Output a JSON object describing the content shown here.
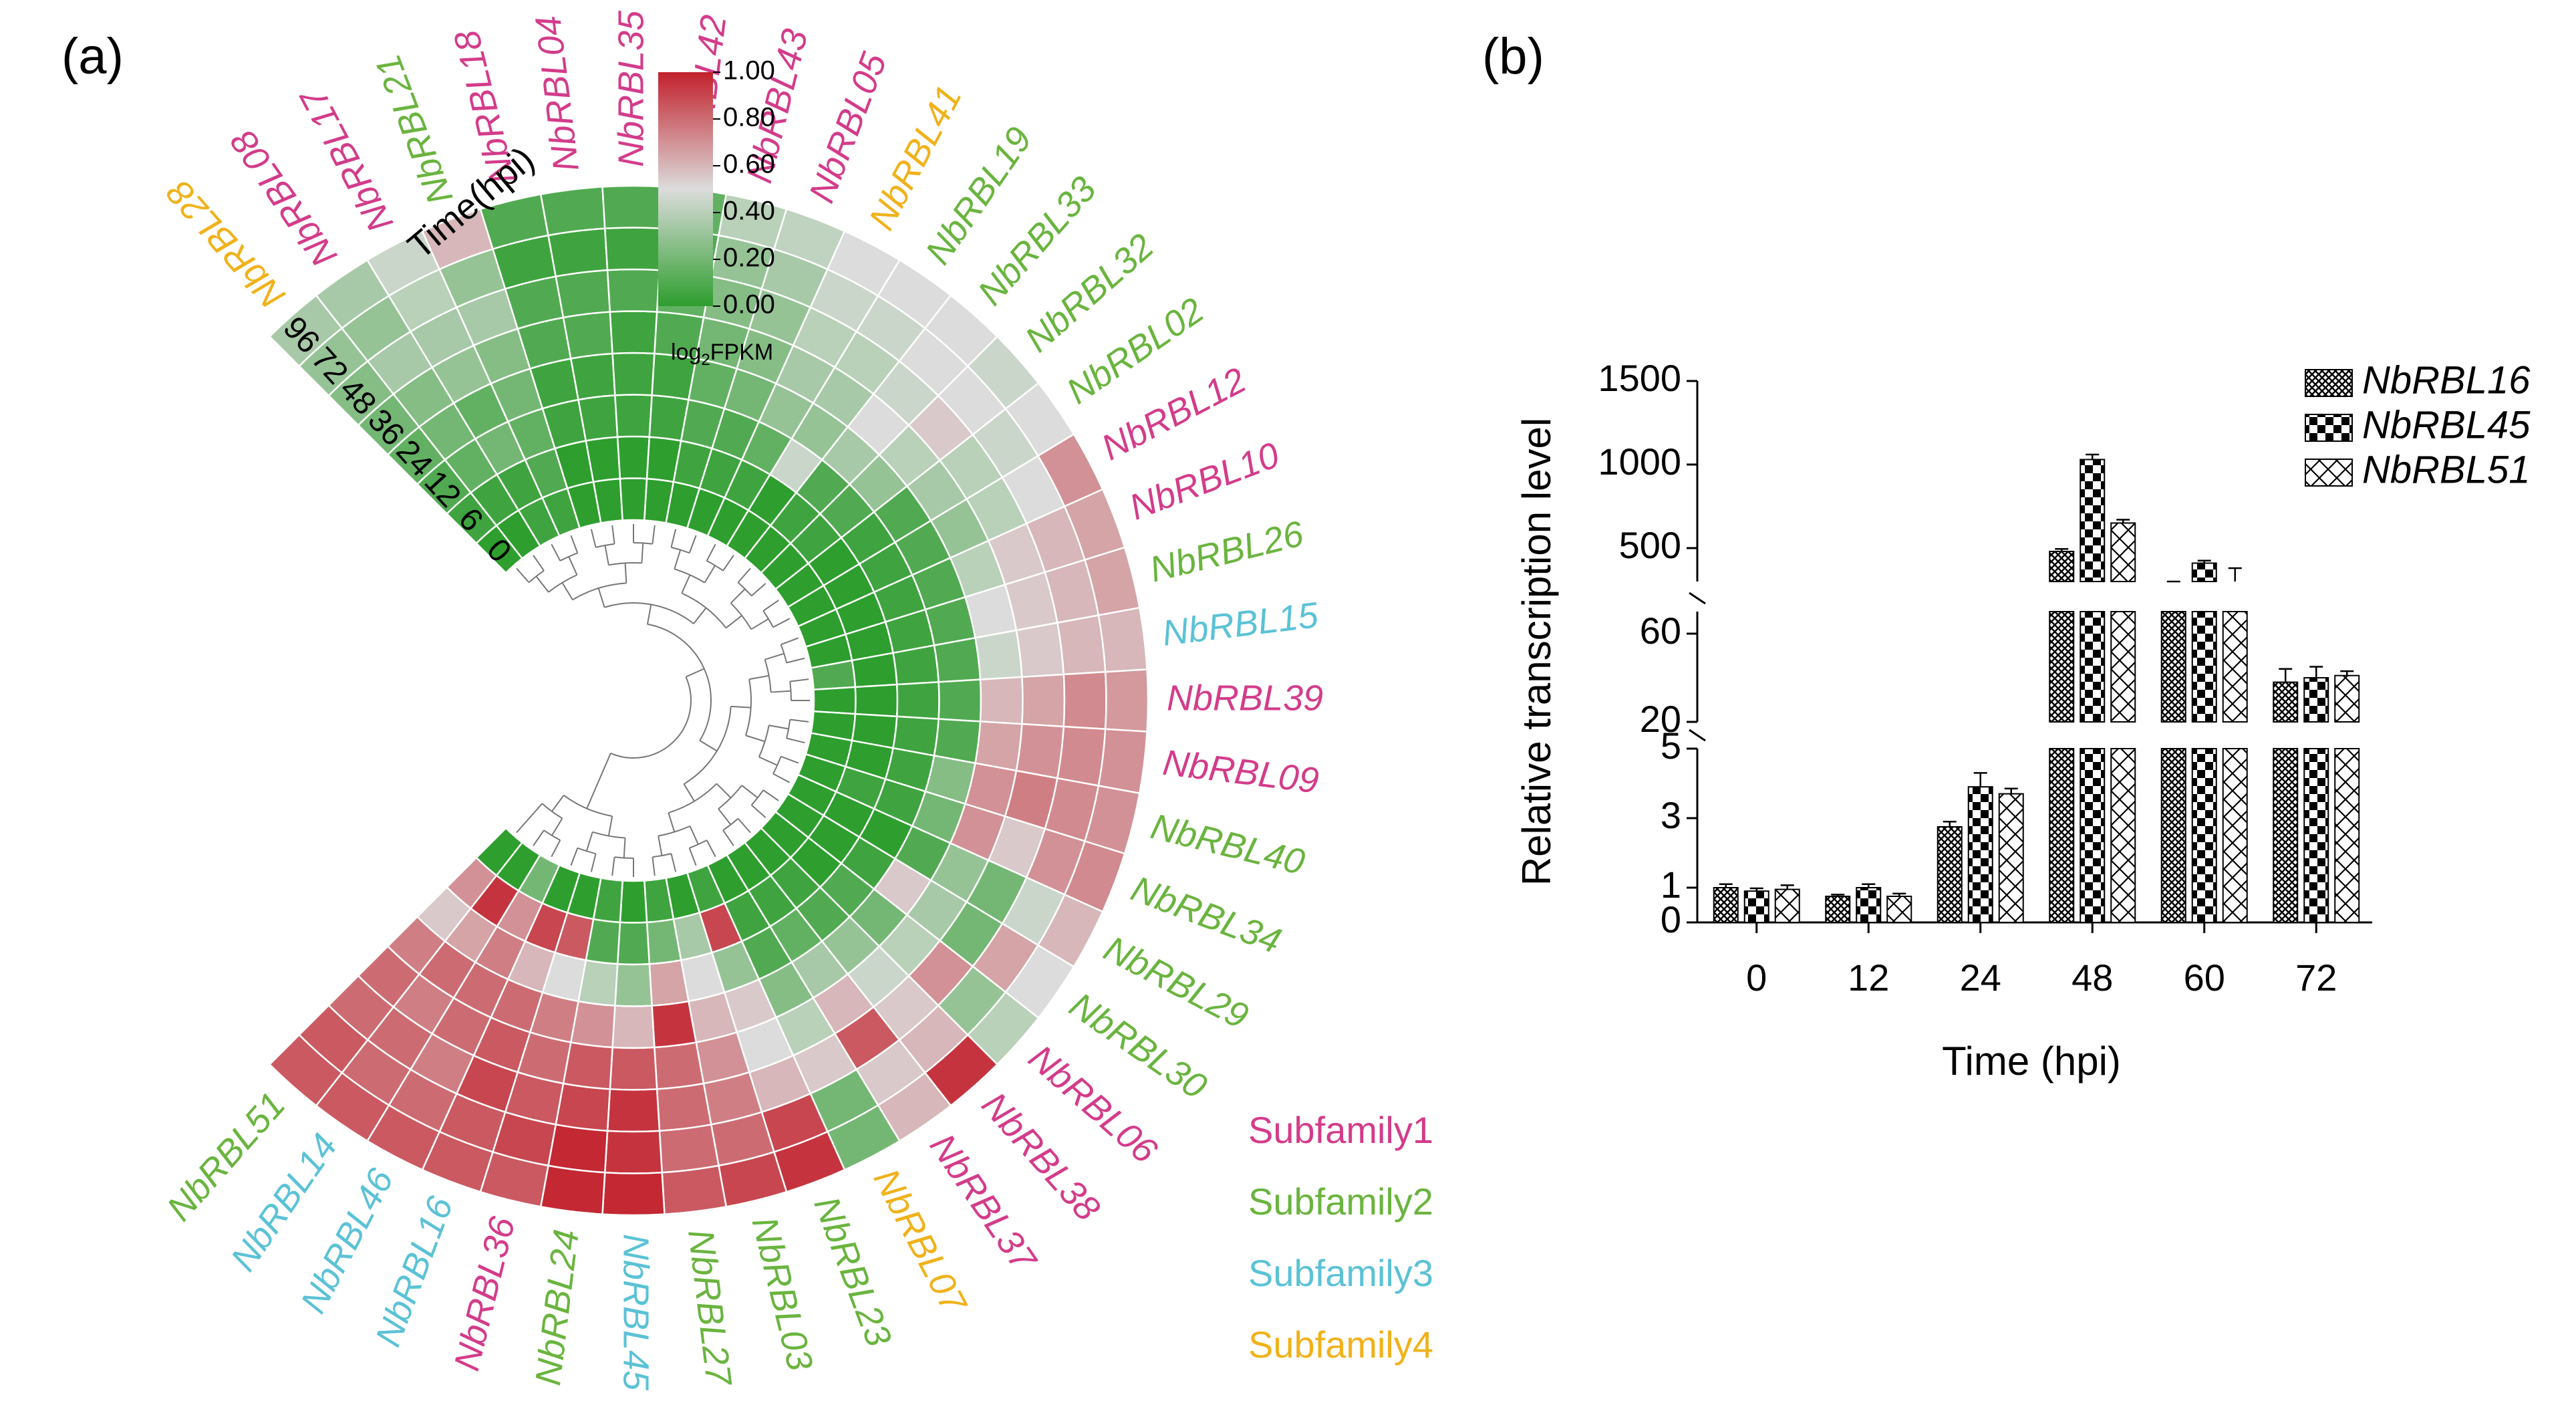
{
  "panel_a": {
    "label": "(a)",
    "time_title": "Time(hpi)",
    "time_rings": [
      "96",
      "72",
      "48",
      "36",
      "24",
      "12",
      "6",
      "0"
    ],
    "colorbar": {
      "ticks": [
        "1.00",
        "0.80",
        "0.60",
        "0.40",
        "0.20",
        "0.00"
      ],
      "label_main": "log",
      "label_sub": "2",
      "label_tail": "FPKM",
      "colors": {
        "high": "#c2212c",
        "mid": "#dcdcdc",
        "low": "#2e9e2e"
      }
    },
    "subfamily_colors": [
      "#d33c8a",
      "#6ab43f",
      "#5bc2d6",
      "#f0b21a"
    ],
    "legend": [
      "Subfamily1",
      "Subfamily2",
      "Subfamily3",
      "Subfamily4"
    ]
  },
  "chart_data": [
    {
      "type": "heatmap",
      "title": "",
      "scale": [
        0.0,
        1.0
      ],
      "time_points_hpi": [
        0,
        6,
        12,
        24,
        36,
        48,
        72,
        96
      ],
      "genes": [
        {
          "name": "NbRBL28",
          "subfamily": 4,
          "values": [
            0.0,
            0.05,
            0.1,
            0.15,
            0.2,
            0.25,
            0.3,
            0.35
          ]
        },
        {
          "name": "NbRBL08",
          "subfamily": 1,
          "values": [
            0.0,
            0.05,
            0.15,
            0.2,
            0.25,
            0.35,
            0.3,
            0.35
          ]
        },
        {
          "name": "NbRBL17",
          "subfamily": 1,
          "values": [
            0.05,
            0.05,
            0.2,
            0.15,
            0.3,
            0.35,
            0.4,
            0.45
          ]
        },
        {
          "name": "NbRBL21",
          "subfamily": 2,
          "values": [
            0.05,
            0.1,
            0.15,
            0.2,
            0.25,
            0.35,
            0.3,
            0.6
          ]
        },
        {
          "name": "NbRBL18",
          "subfamily": 1,
          "values": [
            0.0,
            0.0,
            0.05,
            0.05,
            0.1,
            0.1,
            0.05,
            0.1
          ]
        },
        {
          "name": "NbRBL04",
          "subfamily": 1,
          "values": [
            0.0,
            0.0,
            0.05,
            0.05,
            0.1,
            0.1,
            0.05,
            0.1
          ]
        },
        {
          "name": "NbRBL35",
          "subfamily": 1,
          "values": [
            0.0,
            0.0,
            0.05,
            0.05,
            0.05,
            0.1,
            0.05,
            0.1
          ]
        },
        {
          "name": "NbRBL42",
          "subfamily": 1,
          "values": [
            0.0,
            0.0,
            0.05,
            0.05,
            0.1,
            0.15,
            0.1,
            0.15
          ]
        },
        {
          "name": "NbRBL43",
          "subfamily": 1,
          "values": [
            0.0,
            0.05,
            0.1,
            0.15,
            0.2,
            0.25,
            0.3,
            0.4
          ]
        },
        {
          "name": "NbRBL05",
          "subfamily": 1,
          "values": [
            0.0,
            0.05,
            0.1,
            0.2,
            0.25,
            0.3,
            0.35,
            0.42
          ]
        },
        {
          "name": "NbRBL41",
          "subfamily": 4,
          "values": [
            0.0,
            0.05,
            0.15,
            0.3,
            0.35,
            0.4,
            0.45,
            0.5
          ]
        },
        {
          "name": "NbRBL19",
          "subfamily": 2,
          "values": [
            0.0,
            0.0,
            0.45,
            0.3,
            0.35,
            0.4,
            0.45,
            0.5
          ]
        },
        {
          "name": "NbRBL33",
          "subfamily": 2,
          "values": [
            0.0,
            0.05,
            0.1,
            0.35,
            0.5,
            0.45,
            0.5,
            0.5
          ]
        },
        {
          "name": "NbRBL32",
          "subfamily": 2,
          "values": [
            0.0,
            0.05,
            0.1,
            0.3,
            0.4,
            0.55,
            0.5,
            0.45
          ]
        },
        {
          "name": "NbRBL02",
          "subfamily": 2,
          "values": [
            0.0,
            0.0,
            0.05,
            0.1,
            0.35,
            0.4,
            0.45,
            0.5
          ]
        },
        {
          "name": "NbRBL12",
          "subfamily": 1,
          "values": [
            0.0,
            0.0,
            0.05,
            0.1,
            0.3,
            0.4,
            0.5,
            0.7
          ]
        },
        {
          "name": "NbRBL10",
          "subfamily": 1,
          "values": [
            0.0,
            0.0,
            0.05,
            0.1,
            0.4,
            0.55,
            0.6,
            0.65
          ]
        },
        {
          "name": "NbRBL26",
          "subfamily": 2,
          "values": [
            0.0,
            0.0,
            0.05,
            0.1,
            0.5,
            0.55,
            0.6,
            0.65
          ]
        },
        {
          "name": "NbRBL15",
          "subfamily": 3,
          "values": [
            0.1,
            0.0,
            0.05,
            0.1,
            0.45,
            0.55,
            0.6,
            0.6
          ]
        },
        {
          "name": "NbRBL39",
          "subfamily": 1,
          "values": [
            0.0,
            0.0,
            0.05,
            0.1,
            0.6,
            0.65,
            0.72,
            0.68
          ]
        },
        {
          "name": "NbRBL09",
          "subfamily": 1,
          "values": [
            0.0,
            0.0,
            0.05,
            0.1,
            0.65,
            0.7,
            0.72,
            0.7
          ]
        },
        {
          "name": "NbRBL40",
          "subfamily": 2,
          "values": [
            0.0,
            0.0,
            0.05,
            0.25,
            0.7,
            0.75,
            0.72,
            0.7
          ]
        },
        {
          "name": "NbRBL34",
          "subfamily": 2,
          "values": [
            0.0,
            0.05,
            0.05,
            0.2,
            0.7,
            0.55,
            0.7,
            0.72
          ]
        },
        {
          "name": "NbRBL29",
          "subfamily": 2,
          "values": [
            0.0,
            0.0,
            0.0,
            0.1,
            0.3,
            0.2,
            0.45,
            0.6
          ]
        },
        {
          "name": "NbRBL30",
          "subfamily": 2,
          "values": [
            0.0,
            0.0,
            0.05,
            0.55,
            0.35,
            0.2,
            0.65,
            0.5
          ]
        },
        {
          "name": "NbRBL06",
          "subfamily": 1,
          "values": [
            0.0,
            0.0,
            0.1,
            0.2,
            0.4,
            0.7,
            0.3,
            0.4
          ]
        },
        {
          "name": "NbRBL38",
          "subfamily": 1,
          "values": [
            0.0,
            0.05,
            0.1,
            0.3,
            0.45,
            0.55,
            0.6,
            0.95
          ]
        },
        {
          "name": "NbRBL37",
          "subfamily": 1,
          "values": [
            0.0,
            0.05,
            0.15,
            0.35,
            0.6,
            0.85,
            0.55,
            0.6
          ]
        },
        {
          "name": "NbRBL07",
          "subfamily": 4,
          "values": [
            0.0,
            0.05,
            0.1,
            0.25,
            0.4,
            0.55,
            0.2,
            0.2
          ]
        },
        {
          "name": "NbRBL23",
          "subfamily": 2,
          "values": [
            0.05,
            0.9,
            0.3,
            0.55,
            0.5,
            0.6,
            0.9,
            0.95
          ]
        },
        {
          "name": "NbRBL03",
          "subfamily": 2,
          "values": [
            0.0,
            0.35,
            0.5,
            0.6,
            0.7,
            0.75,
            0.8,
            0.9
          ]
        },
        {
          "name": "NbRBL27",
          "subfamily": 2,
          "values": [
            0.05,
            0.2,
            0.65,
            0.95,
            0.8,
            0.8,
            0.8,
            0.85
          ]
        },
        {
          "name": "NbRBL45",
          "subfamily": 3,
          "values": [
            0.0,
            0.1,
            0.3,
            0.6,
            0.85,
            0.95,
            0.95,
            0.98
          ]
        },
        {
          "name": "NbRBL24",
          "subfamily": 2,
          "values": [
            0.05,
            0.1,
            0.4,
            0.7,
            0.85,
            0.9,
            0.98,
            0.98
          ]
        },
        {
          "name": "NbRBL36",
          "subfamily": 1,
          "values": [
            0.0,
            0.85,
            0.5,
            0.75,
            0.8,
            0.85,
            0.9,
            0.85
          ]
        },
        {
          "name": "NbRBL16",
          "subfamily": 3,
          "values": [
            0.0,
            0.9,
            0.6,
            0.8,
            0.85,
            0.9,
            0.85,
            0.85
          ]
        },
        {
          "name": "NbRBL46",
          "subfamily": 3,
          "values": [
            0.2,
            0.7,
            0.75,
            0.8,
            0.8,
            0.75,
            0.8,
            0.85
          ]
        },
        {
          "name": "NbRBL14",
          "subfamily": 3,
          "values": [
            0.0,
            0.95,
            0.65,
            0.8,
            0.75,
            0.8,
            0.8,
            0.85
          ]
        },
        {
          "name": "NbRBL51",
          "subfamily": 2,
          "values": [
            0.0,
            0.7,
            0.55,
            0.75,
            0.8,
            0.8,
            0.85,
            0.85
          ]
        }
      ]
    },
    {
      "type": "bar",
      "title": "",
      "xlabel": "Time (hpi)",
      "ylabel": "Relative transcription level",
      "categories": [
        "0",
        "12",
        "24",
        "48",
        "60",
        "72"
      ],
      "y_segments": [
        [
          0,
          5
        ],
        [
          20,
          70
        ],
        [
          300,
          1500
        ]
      ],
      "y_ticks": [
        "0",
        "1",
        "3",
        "5",
        "20",
        "60",
        "500",
        "1000",
        "1500"
      ],
      "series": [
        {
          "name": "NbRBL16",
          "values": [
            1.0,
            0.75,
            2.75,
            480,
            180,
            38
          ],
          "errors": [
            0.1,
            0.05,
            0.15,
            15,
            12,
            6
          ]
        },
        {
          "name": "NbRBL45",
          "values": [
            0.9,
            1.0,
            3.9,
            1030,
            410,
            40
          ],
          "errors": [
            0.08,
            0.1,
            0.4,
            30,
            15,
            5
          ]
        },
        {
          "name": "NbRBL51",
          "values": [
            0.95,
            0.75,
            3.7,
            650,
            300,
            41
          ],
          "errors": [
            0.12,
            0.08,
            0.15,
            20,
            80,
            2
          ]
        }
      ]
    }
  ],
  "panel_b": {
    "label": "(b)"
  }
}
